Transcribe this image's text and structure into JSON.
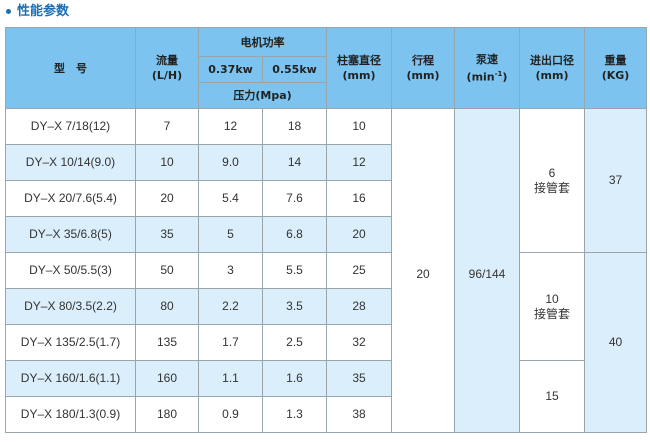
{
  "title": "性能参数",
  "header": {
    "model": "型　号",
    "flow": "流量",
    "flow_unit": "(L/H)",
    "motor_power": "电机功率",
    "power_1": "0.37kw",
    "power_2": "0.55kw",
    "pressure": "压力(Mpa)",
    "plunger": "柱塞直径",
    "plunger_unit": "(mm)",
    "stroke": "行程",
    "stroke_unit": "(mm)",
    "speed": "泵速",
    "speed_unit": "(min",
    "speed_sup": "-1",
    "speed_close": ")",
    "port": "进出口径",
    "port_unit": "(mm)",
    "weight": "重量",
    "weight_unit": "(KG)"
  },
  "rows": [
    {
      "model": "DY–X 7/18(12)",
      "flow": "7",
      "p1": "12",
      "p2": "18",
      "plunger": "10"
    },
    {
      "model": "DY–X 10/14(9.0)",
      "flow": "10",
      "p1": "9.0",
      "p2": "14",
      "plunger": "12"
    },
    {
      "model": "DY–X 20/7.6(5.4)",
      "flow": "20",
      "p1": "5.4",
      "p2": "7.6",
      "plunger": "16"
    },
    {
      "model": "DY–X 35/6.8(5)",
      "flow": "35",
      "p1": "5",
      "p2": "6.8",
      "plunger": "20"
    },
    {
      "model": "DY–X 50/5.5(3)",
      "flow": "50",
      "p1": "3",
      "p2": "5.5",
      "plunger": "25"
    },
    {
      "model": "DY–X 80/3.5(2.2)",
      "flow": "80",
      "p1": "2.2",
      "p2": "3.5",
      "plunger": "28"
    },
    {
      "model": "DY–X 135/2.5(1.7)",
      "flow": "135",
      "p1": "1.7",
      "p2": "2.5",
      "plunger": "32"
    },
    {
      "model": "DY–X 160/1.6(1.1)",
      "flow": "160",
      "p1": "1.1",
      "p2": "1.6",
      "plunger": "35"
    },
    {
      "model": "DY–X 180/1.3(0.9)",
      "flow": "180",
      "p1": "0.9",
      "p2": "1.3",
      "plunger": "38"
    }
  ],
  "stroke": "20",
  "speed": "96/144",
  "port": [
    {
      "value": "6",
      "note": "接管套"
    },
    {
      "value": "10",
      "note": "接管套"
    },
    {
      "value": "15"
    }
  ],
  "weight": [
    "37",
    "40"
  ]
}
